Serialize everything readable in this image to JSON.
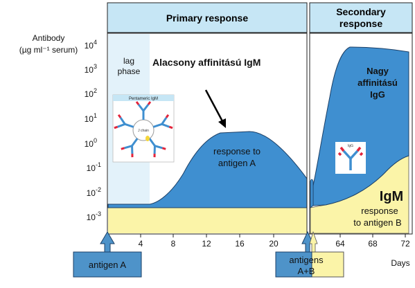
{
  "headers": {
    "primary": "Primary  response",
    "secondary_line1": "Secondary",
    "secondary_line2": "response"
  },
  "y_axis": {
    "title_line1": "Antibody",
    "title_line2": "(µg ml⁻¹ serum)",
    "ticks": [
      {
        "base": "10",
        "exp": "4"
      },
      {
        "base": "10",
        "exp": "3"
      },
      {
        "base": "10",
        "exp": "2"
      },
      {
        "base": "10",
        "exp": "1"
      },
      {
        "base": "10",
        "exp": "0"
      },
      {
        "base": "10",
        "exp": "-1"
      },
      {
        "base": "10",
        "exp": "-2"
      },
      {
        "base": "10",
        "exp": "-3"
      }
    ]
  },
  "x_axis": {
    "label": "Days",
    "primary_ticks": [
      "4",
      "8",
      "12",
      "16",
      "20"
    ],
    "secondary_ticks": [
      "64",
      "68",
      "72"
    ]
  },
  "labels": {
    "lag_line1": "lag",
    "lag_line2": "phase",
    "igm_low_affinity": "Alacsony affinitású IgM",
    "response_a_line1": "response to",
    "response_a_line2": "antigen A",
    "igg_line1": "Nagy",
    "igg_line2": "affinitású",
    "igg_line3": "IgG",
    "igm_big": "IgM",
    "response_b_line1": "response",
    "response_b_line2": "to antigen B",
    "pentamer_title": "Pentameric  IgM",
    "j_chain": "J chain",
    "igg_icon_label": "IgG"
  },
  "antigen_boxes": {
    "a": "antigen A",
    "ab_line1": "antigens",
    "ab_line2": "A+B"
  },
  "colors": {
    "header_fill": "#c6e6f5",
    "lag_fill": "#e3f2fa",
    "response_blue": "#3f8fd0",
    "igm_yellow": "#fbf4a8",
    "box_blue": "#4e93c9"
  }
}
